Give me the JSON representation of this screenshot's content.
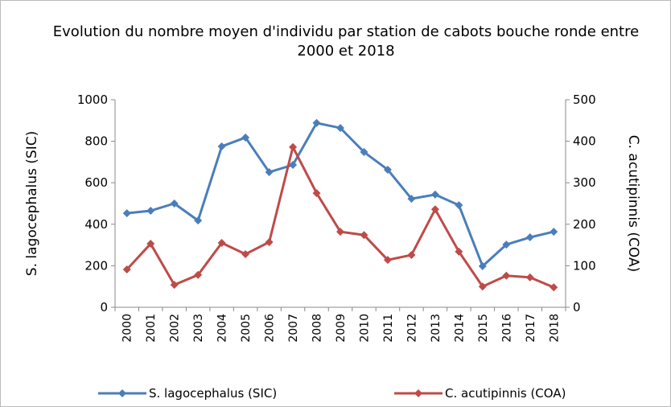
{
  "chart_data": {
    "type": "line",
    "title": "Evolution du nombre moyen d'individu par station de cabots bouche ronde entre 2000 et 2018",
    "categories": [
      "2000",
      "2001",
      "2002",
      "2003",
      "2004",
      "2005",
      "2006",
      "2007",
      "2008",
      "2009",
      "2010",
      "2011",
      "2012",
      "2013",
      "2014",
      "2015",
      "2016",
      "2017",
      "2018"
    ],
    "series": [
      {
        "name": "S. lagocephalus (SIC)",
        "color": "#4a7ebb",
        "values": [
          453,
          465,
          500,
          418,
          775,
          818,
          651,
          686,
          888,
          864,
          748,
          663,
          523,
          543,
          492,
          198,
          302,
          337,
          364
        ]
      },
      {
        "name": "C. acutipinnis (COA)",
        "color": "#be4b48",
        "axis": "y2",
        "values": [
          91,
          153,
          54,
          78,
          155,
          128,
          157,
          386,
          275,
          182,
          174,
          114,
          126,
          236,
          134,
          50,
          76,
          72,
          48
        ]
      }
    ],
    "ylabel": "S. lagocephalus (SIC)",
    "y2label": "C. acutipinnis (COA)",
    "ylim": [
      0,
      1000
    ],
    "yticks": [
      0,
      200,
      400,
      600,
      800,
      1000
    ],
    "y2lim": [
      0,
      500
    ],
    "y2ticks": [
      0,
      100,
      200,
      300,
      400,
      500
    ],
    "legend": "bottom"
  }
}
